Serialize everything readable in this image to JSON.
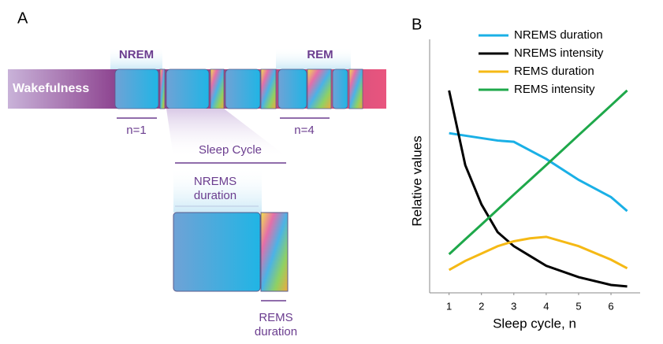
{
  "panel_a": {
    "label": "A",
    "nrem": "NREM",
    "rem": "REM",
    "wakefulness": "Wakefulness",
    "n1": "n=1",
    "n4": "n=4",
    "sleep_cycle": "Sleep Cycle",
    "nrems_duration": [
      "NREMS",
      "duration"
    ],
    "rems_duration": [
      "REMS",
      "duration"
    ]
  },
  "chart_data": {
    "type": "line",
    "panel_label": "B",
    "x_label": "Sleep cycle, n",
    "y_label": "Relative values",
    "x": [
      1,
      1.5,
      2,
      2.5,
      3,
      3.5,
      4,
      5,
      6,
      6.5
    ],
    "xlim": [
      0.4,
      6.9
    ],
    "xticks": [
      1,
      2,
      3,
      4,
      5,
      6
    ],
    "ylim": [
      0,
      1
    ],
    "grid": false,
    "series": [
      {
        "name": "NREMS duration",
        "color": "#1ab0e6",
        "values": [
          0.65,
          0.64,
          0.63,
          0.62,
          0.615,
          0.58,
          0.545,
          0.46,
          0.39,
          0.333
        ]
      },
      {
        "name": "NREMS intensity",
        "color": "#000000",
        "values": [
          0.824,
          0.52,
          0.36,
          0.247,
          0.19,
          0.15,
          0.11,
          0.064,
          0.032,
          0.026
        ]
      },
      {
        "name": "REMS duration",
        "color": "#f5b915",
        "values": [
          0.093,
          0.13,
          0.16,
          0.19,
          0.21,
          0.222,
          0.228,
          0.19,
          0.135,
          0.1
        ]
      },
      {
        "name": "REMS intensity",
        "color": "#1ea84a",
        "values": [
          0.157,
          0.218,
          0.278,
          0.339,
          0.4,
          0.46,
          0.52,
          0.642,
          0.763,
          0.824
        ]
      }
    ]
  }
}
